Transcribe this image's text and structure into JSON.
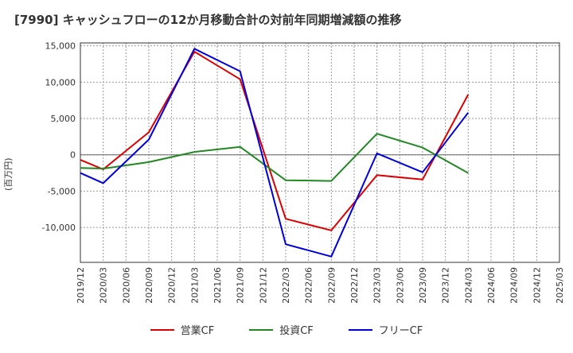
{
  "title": "[7990]  キャッシュフローの12か月移動合計の対前年同期増減額の推移",
  "y_unit_label": "(百万円)",
  "colors": {
    "operating": "#dd0000",
    "investing": "#228822",
    "free": "#0000dd",
    "grid": "#999999",
    "axis": "#333333"
  },
  "chart_data": {
    "type": "line",
    "title": "[7990]  キャッシュフローの12か月移動合計の対前年同期増減額の推移",
    "xlabel": "",
    "ylabel": "(百万円)",
    "categories": [
      "2019/12",
      "2020/03",
      "2020/06",
      "2020/09",
      "2020/12",
      "2021/03",
      "2021/06",
      "2021/09",
      "2021/12",
      "2022/03",
      "2022/06",
      "2022/09",
      "2022/12",
      "2023/03",
      "2023/06",
      "2023/09",
      "2023/12",
      "2024/03",
      "2024/06",
      "2024/09",
      "2024/12",
      "2025/03"
    ],
    "ylim": [
      -14800,
      15400
    ],
    "yticks": [
      15000,
      10000,
      5000,
      0,
      -5000,
      -10000
    ],
    "ytick_labels": [
      "15,000",
      "10,000",
      "5,000",
      "0",
      "-5,000",
      "-10,000"
    ],
    "grid": true,
    "legend_position": "bottom",
    "series": [
      {
        "name": "営業CF",
        "color": "#dd0000",
        "values": [
          -700,
          -2000,
          null,
          3100,
          null,
          14200,
          null,
          10400,
          null,
          -8800,
          null,
          -10400,
          null,
          -2800,
          null,
          -3400,
          null,
          8300,
          null,
          null,
          null,
          null
        ]
      },
      {
        "name": "投資CF",
        "color": "#228822",
        "values": [
          -1800,
          -1900,
          null,
          -1000,
          null,
          400,
          null,
          1100,
          null,
          -3500,
          null,
          -3600,
          null,
          2900,
          null,
          1000,
          null,
          -2500,
          null,
          null,
          null,
          null
        ]
      },
      {
        "name": "フリーCF",
        "color": "#0000dd",
        "values": [
          -2500,
          -3900,
          null,
          2100,
          null,
          14600,
          null,
          11500,
          null,
          -12300,
          null,
          -14000,
          null,
          200,
          null,
          -2400,
          null,
          5800,
          null,
          null,
          null,
          null
        ]
      }
    ]
  }
}
